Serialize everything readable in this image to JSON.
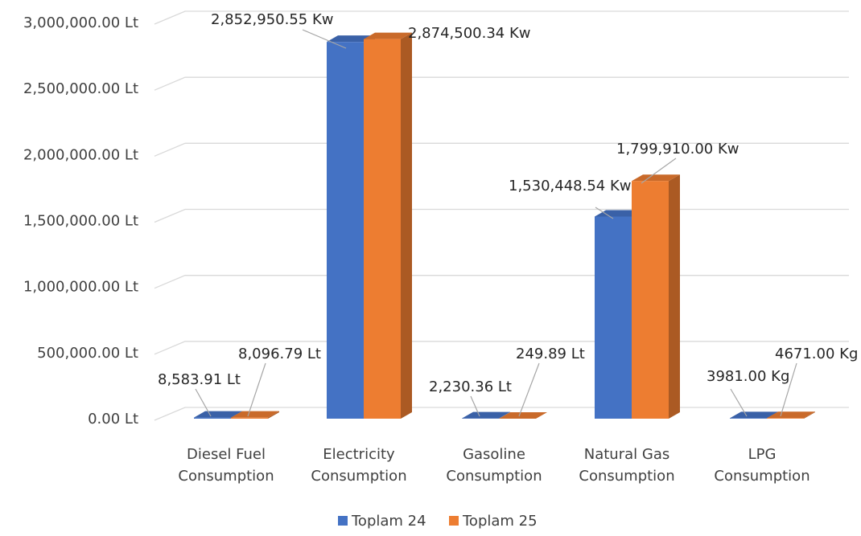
{
  "chart_data": {
    "type": "bar",
    "style": "3d-clustered-column",
    "categories": [
      [
        "Diesel Fuel",
        "Consumption"
      ],
      [
        "Electricity",
        "Consumption"
      ],
      [
        "Gasoline",
        "Consumption"
      ],
      [
        "Natural Gas",
        "Consumption"
      ],
      [
        "LPG",
        "Consumption"
      ]
    ],
    "series": [
      {
        "name": "Toplam 24",
        "color": "#4472C4",
        "values": [
          8583.91,
          2852950.55,
          2230.36,
          1530448.54,
          3981.0
        ],
        "labels": [
          "8,583.91 Lt",
          "2,852,950.55 Kw",
          "2,230.36 Lt",
          "1,530,448.54 Kw",
          "3981.00 Kg"
        ]
      },
      {
        "name": "Toplam 25",
        "color": "#ED7D31",
        "values": [
          8096.79,
          2874500.34,
          249.89,
          1799910.0,
          4671.0
        ],
        "labels": [
          "8,096.79 Lt",
          "2,874,500.34 Kw",
          "249.89 Lt",
          "1,799,910.00 Kw",
          "4671.00 Kg"
        ]
      }
    ],
    "ylim": [
      0,
      3000000
    ],
    "yticks": [
      0,
      500000,
      1000000,
      1500000,
      2000000,
      2500000,
      3000000
    ],
    "ytick_labels": [
      "0.00 Lt",
      "500,000.00 Lt",
      "1,000,000.00 Lt",
      "1,500,000.00 Lt",
      "2,000,000.00 Lt",
      "2,500,000.00 Lt",
      "3,000,000.00 Lt"
    ],
    "grid": true,
    "legend_position": "bottom"
  }
}
